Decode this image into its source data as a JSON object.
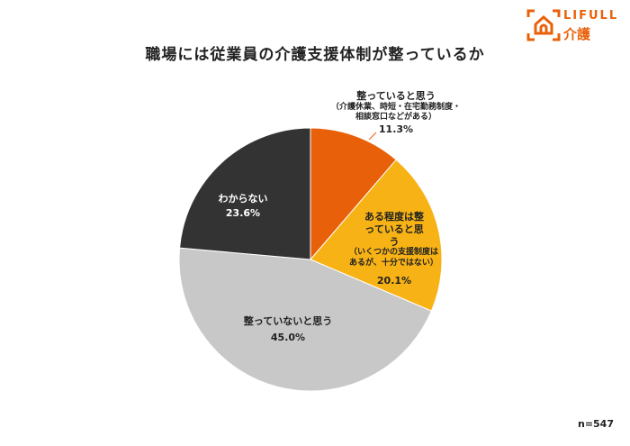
{
  "logo": {
    "line1": "LIFULL",
    "line2": "介護",
    "color": "#E8610A"
  },
  "chart_data": {
    "type": "pie",
    "title": "職場には従業員の介護支援体制が整っているか",
    "start": "12 o'clock",
    "direction": "clockwise",
    "slices": [
      {
        "label": "整っていると思う",
        "note": "（介護休業、時短・在宅勤務制度・相談窓口などがある）",
        "value": 11.3,
        "value_label": "11.3%",
        "color": "#E8610A"
      },
      {
        "label": "ある程度は整っていると思う",
        "note": "（いくつかの支援制度はあるが、十分ではない）",
        "value": 20.1,
        "value_label": "20.1%",
        "color": "#F7B215"
      },
      {
        "label": "整っていないと思う",
        "note": "",
        "value": 45.0,
        "value_label": "45.0%",
        "color": "#C8C8C8"
      },
      {
        "label": "わからない",
        "note": "",
        "value": 23.6,
        "value_label": "23.6%",
        "color": "#333333"
      }
    ],
    "n_label": "n=547"
  }
}
